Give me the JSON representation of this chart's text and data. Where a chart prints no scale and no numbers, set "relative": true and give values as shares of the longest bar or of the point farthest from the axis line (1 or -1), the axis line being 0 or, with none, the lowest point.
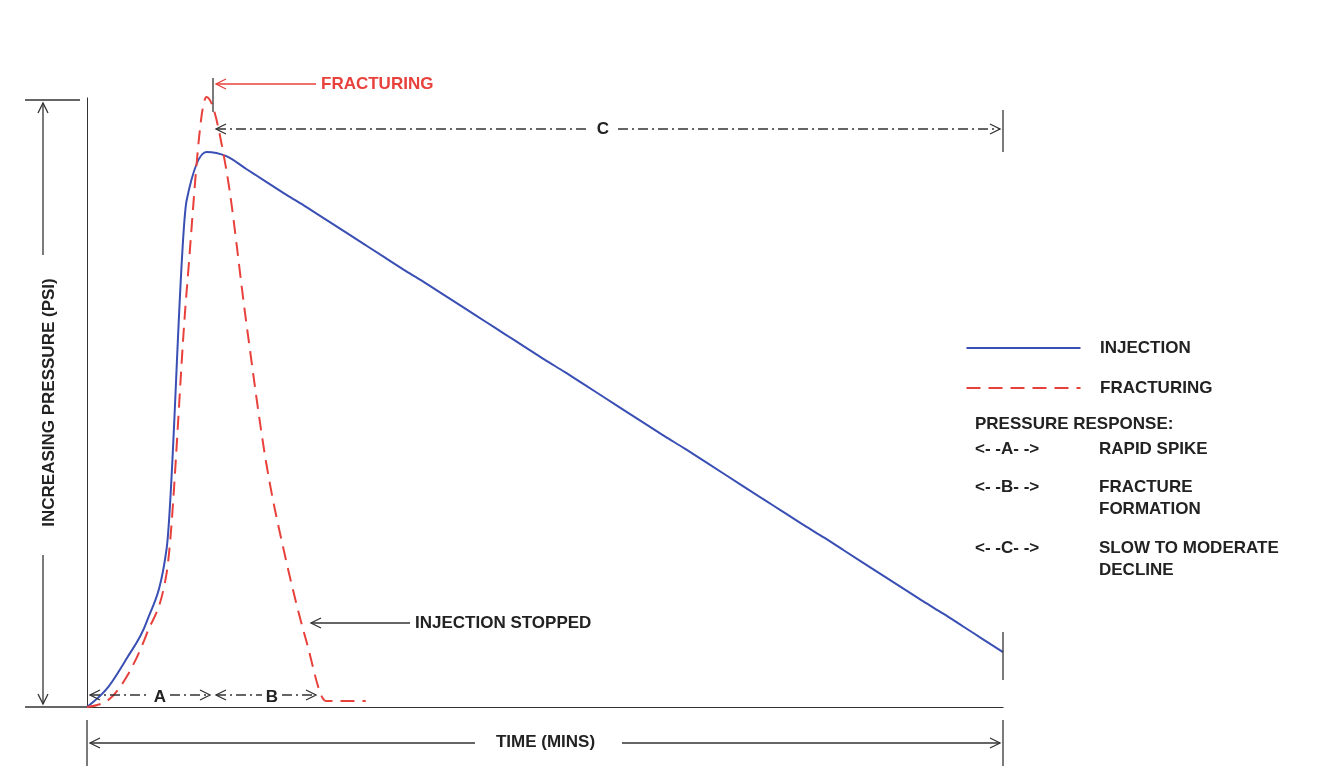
{
  "chart_data": {
    "type": "line",
    "relative": true,
    "xlabel": "TIME (MINS)",
    "ylabel": "INCREASING PRESSURE (PSI)",
    "legend": "right",
    "grid": false,
    "categories": [
      null,
      null,
      null,
      null,
      null,
      null,
      null,
      null,
      null,
      null,
      null,
      null,
      null,
      null,
      null,
      null,
      null,
      null,
      null,
      null,
      null,
      null,
      null,
      null,
      null,
      null,
      null,
      null,
      null,
      null,
      null,
      null,
      null,
      null,
      null,
      null,
      null,
      null,
      null,
      null,
      null,
      null,
      null,
      null,
      null,
      null,
      null
    ],
    "series": [
      {
        "name": "INJECTION",
        "color": "#3a4fb4",
        "line_style": "solid",
        "values": [
          0,
          0.03,
          0.08,
          0.14,
          0.26,
          0.83,
          0.91,
          0.903,
          0.882,
          0.861,
          0.84,
          0.82,
          0.799,
          0.778,
          0.757,
          0.736,
          0.715,
          0.695,
          0.674,
          0.653,
          0.632,
          0.611,
          0.59,
          0.569,
          0.549,
          0.528,
          0.507,
          0.486,
          0.465,
          0.444,
          0.424,
          0.403,
          0.382,
          0.361,
          0.34,
          0.319,
          0.298,
          0.278,
          0.257,
          0.236,
          0.215,
          0.194,
          0.173,
          0.153,
          0.132,
          0.111,
          0.09
        ]
      },
      {
        "name": "FRACTURING",
        "color": "#e8413c",
        "line_style": "dashed",
        "values": [
          0,
          0.01,
          0.05,
          0.12,
          0.22,
          0.68,
          1,
          0.88,
          0.63,
          0.4,
          0.24,
          0.11,
          0.01,
          0.01,
          0.01,
          null,
          null,
          null,
          null,
          null,
          null,
          null,
          null,
          null,
          null,
          null,
          null,
          null,
          null,
          null,
          null,
          null,
          null,
          null,
          null,
          null,
          null,
          null,
          null,
          null,
          null,
          null,
          null,
          null,
          null,
          null,
          null
        ]
      }
    ],
    "annotations": [
      "FRACTURING",
      "C",
      "INJECTION STOPPED",
      "A",
      "B",
      "PRESSURE RESPONSE:",
      "<- -A- ->",
      "RAPID SPIKE",
      "<- -B- ->",
      "FRACTURE FORMATION",
      "<- -C- ->",
      "SLOW TO MODERATE DECLINE"
    ]
  }
}
